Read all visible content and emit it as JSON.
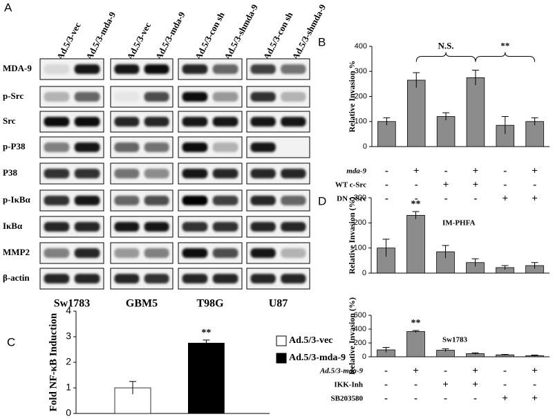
{
  "panel_a": {
    "label": "A",
    "headers": [
      "Ad.5/3-vec",
      "Ad.5/3-mda-9",
      "Ad.5/3-vec",
      "Ad.5/3-mda-9",
      "Ad.5/3-con sh",
      "Ad.5/3-shmda-9",
      "Ad.5/3-con sh",
      "Ad.5/3-shmda-9"
    ],
    "rows": [
      "MDA-9",
      "p-Src",
      "Src",
      "p-P38",
      "P38",
      "p-IκBα",
      "IκBα",
      "MMP2",
      "β-actin"
    ],
    "cell_lines": [
      "Sw1783",
      "GBM5",
      "T98G",
      "U87"
    ]
  },
  "chart_data": [
    {
      "type": "bar",
      "panel": "B",
      "ylabel": "Relative Invasion %",
      "ylim": [
        0,
        400
      ],
      "yticks": [
        0,
        100,
        200,
        300,
        400
      ],
      "values": [
        100,
        265,
        120,
        275,
        85,
        100
      ],
      "errors": [
        15,
        30,
        15,
        30,
        35,
        15
      ],
      "color": "#8c8c8c",
      "annotations": [
        "N.S.",
        "**"
      ],
      "conditions": [
        {
          "name": "mda-9",
          "signs": [
            "-",
            "+",
            "-",
            "+",
            "-",
            "+"
          ]
        },
        {
          "name": "WT c-Src",
          "signs": [
            "-",
            "-",
            "+",
            "+",
            "-",
            "-"
          ]
        },
        {
          "name": "DN c-Src",
          "signs": [
            "-",
            "-",
            "-",
            "-",
            "+",
            "+"
          ]
        }
      ]
    },
    {
      "type": "bar",
      "panel": "C",
      "ylabel": "Fold NF-κB Induction",
      "ylim": [
        0,
        4
      ],
      "yticks": [
        0,
        1,
        2,
        3,
        4
      ],
      "values": [
        1,
        2.75
      ],
      "errors": [
        0.25,
        0.12
      ],
      "colors": [
        "#ffffff",
        "#000000"
      ],
      "legend": [
        "Ad.5/3-vec",
        "Ad.5/3-mda-9"
      ],
      "annotations": [
        "**"
      ]
    },
    {
      "type": "bar",
      "panel": "D",
      "ylabel": "Relative Invasion (%)",
      "subtitle": "IM-PHFA",
      "ylim": [
        0,
        300
      ],
      "yticks": [
        0,
        100,
        200,
        300
      ],
      "values": [
        100,
        230,
        85,
        42,
        22,
        30
      ],
      "errors": [
        35,
        15,
        25,
        15,
        8,
        12
      ],
      "color": "#8c8c8c",
      "annotations": [
        "**"
      ]
    },
    {
      "type": "bar",
      "ylabel": "Relative Invasion (%)",
      "subtitle": "Sw1783",
      "ylim": [
        0,
        600
      ],
      "yticks": [
        0,
        200,
        400,
        600
      ],
      "values": [
        100,
        365,
        95,
        45,
        28,
        15
      ],
      "errors": [
        35,
        15,
        20,
        12,
        6,
        10
      ],
      "color": "#8c8c8c",
      "annotations": [
        "**"
      ],
      "conditions": [
        {
          "name": "Ad.5/3-mda-9",
          "signs": [
            "-",
            "+",
            "-",
            "+",
            "-",
            "+"
          ]
        },
        {
          "name": "IKK-Inh",
          "signs": [
            "-",
            "-",
            "+",
            "+",
            "-",
            "-"
          ]
        },
        {
          "name": "SB203580",
          "signs": [
            "-",
            "-",
            "-",
            "-",
            "+",
            "+"
          ]
        }
      ]
    }
  ]
}
